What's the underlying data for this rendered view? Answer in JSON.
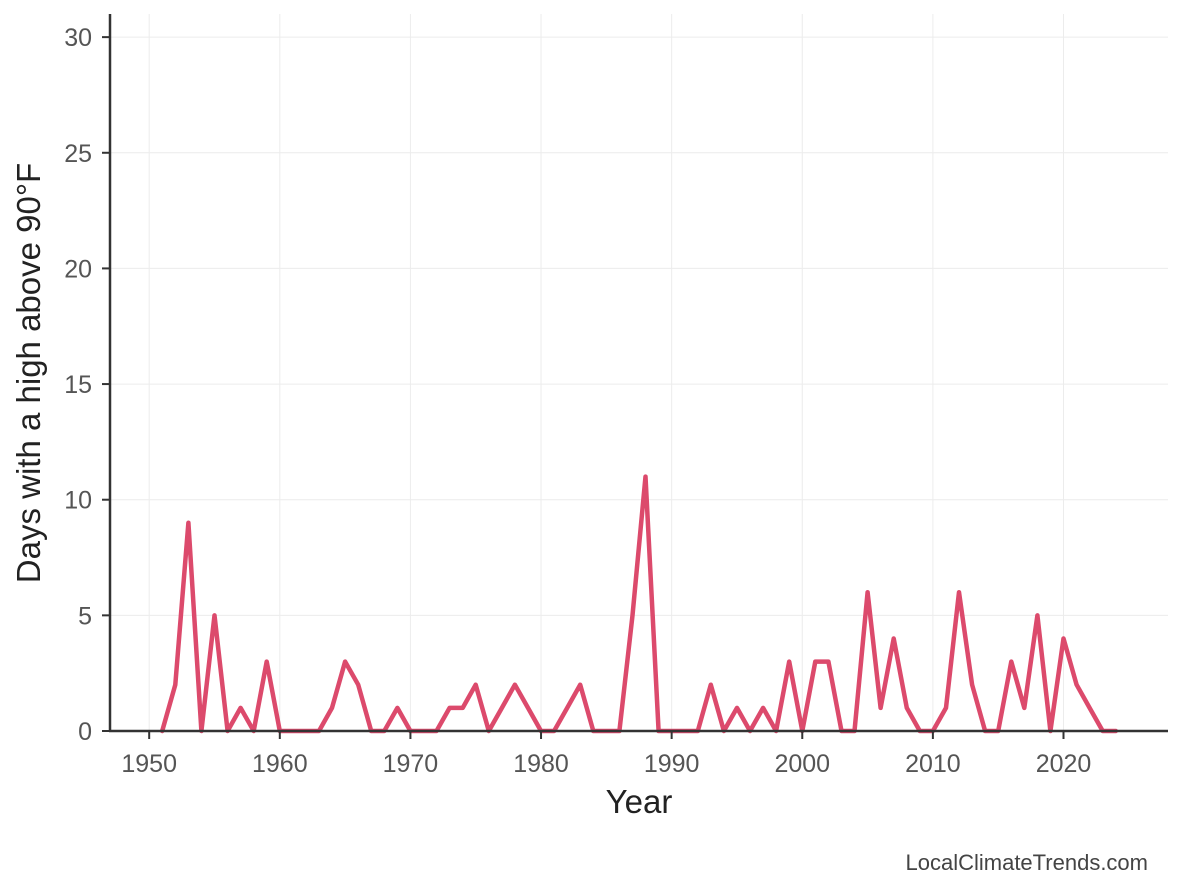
{
  "chart_data": {
    "type": "line",
    "xlabel": "Year",
    "ylabel": "Days with a high above 90°F",
    "xlim": [
      1947,
      2028
    ],
    "ylim": [
      0,
      31
    ],
    "xticks": [
      1950,
      1960,
      1970,
      1980,
      1990,
      2000,
      2010,
      2020
    ],
    "yticks": [
      0,
      5,
      10,
      15,
      20,
      25,
      30
    ],
    "grid": true,
    "legend": "none",
    "line_color": "#dc4a6c",
    "series": [
      {
        "x": [
          1951,
          1952,
          1953,
          1954,
          1955,
          1956,
          1957,
          1958,
          1959,
          1960,
          1961,
          1962,
          1963,
          1964,
          1965,
          1966,
          1967,
          1968,
          1969,
          1970,
          1971,
          1972,
          1973,
          1974,
          1975,
          1976,
          1977,
          1978,
          1979,
          1980,
          1981,
          1982,
          1983,
          1984,
          1985,
          1986,
          1987,
          1988,
          1989,
          1990,
          1991,
          1992,
          1993,
          1994,
          1995,
          1996,
          1997,
          1998,
          1999,
          2000,
          2001,
          2002,
          2003,
          2004,
          2005,
          2006,
          2007,
          2008,
          2009,
          2010,
          2011,
          2012,
          2013,
          2014,
          2015,
          2016,
          2017,
          2018,
          2019,
          2020,
          2021,
          2022,
          2023,
          2024
        ],
        "values": [
          0,
          2,
          9,
          0,
          5,
          0,
          1,
          0,
          3,
          0,
          0,
          0,
          0,
          1,
          3,
          2,
          0,
          0,
          1,
          0,
          0,
          0,
          1,
          1,
          2,
          0,
          1,
          2,
          1,
          0,
          0,
          1,
          2,
          0,
          0,
          0,
          5,
          11,
          0,
          0,
          0,
          0,
          2,
          0,
          1,
          0,
          1,
          0,
          3,
          0,
          3,
          3,
          0,
          0,
          6,
          1,
          4,
          1,
          0,
          0,
          1,
          6,
          2,
          0,
          0,
          3,
          1,
          5,
          0,
          4,
          2,
          1,
          0,
          0
        ]
      }
    ]
  },
  "credit": "LocalClimateTrends.com"
}
